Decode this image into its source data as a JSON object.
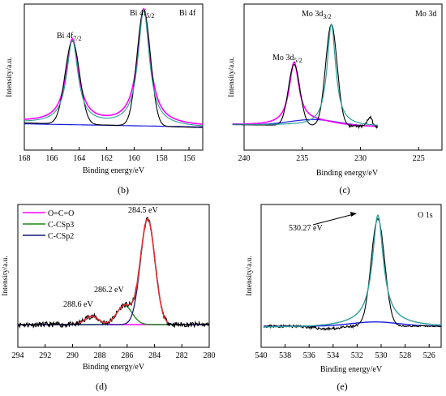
{
  "colors": {
    "black": "#000000",
    "magenta": "#ff00ff",
    "teal": "#2e9f9a",
    "blue": "#1a1ae0",
    "darkblue": "#1a1a80",
    "green": "#1a8a1a",
    "red": "#e03030",
    "darkgray": "#555555"
  },
  "chart_data": [
    {
      "panel": "b",
      "type": "line",
      "label": "(b)",
      "corner_title": "Bi 4f",
      "xlabel": "Binding energy/eV",
      "ylabel": "Intensity/a.u.",
      "xlim": [
        168,
        155
      ],
      "xticks": [
        168,
        166,
        164,
        162,
        160,
        158,
        156
      ],
      "peaks": [
        {
          "name": "Bi 4f",
          "sub": "7/2",
          "center_eV": 164.5,
          "rel_height": 0.72
        },
        {
          "name": "Bi 4f",
          "sub": "5/2",
          "center_eV": 159.3,
          "rel_height": 1.0
        }
      ],
      "series": [
        "raw spectrum (black)",
        "fit (teal)",
        "envelope (magenta)",
        "background (blue)"
      ]
    },
    {
      "panel": "c",
      "type": "line",
      "label": "(c)",
      "corner_title": "Mo 3d",
      "xlabel": "Binding energy/eV",
      "ylabel": "Intensity/a.u.",
      "xlim": [
        240,
        223
      ],
      "xticks": [
        240,
        235,
        230,
        225
      ],
      "peaks": [
        {
          "name": "Mo 3d",
          "sub": "5/2",
          "center_eV": 235.7,
          "rel_height": 0.6
        },
        {
          "name": "Mo 3d",
          "sub": "3/2",
          "center_eV": 232.5,
          "rel_height": 1.0
        }
      ],
      "series": [
        "raw spectrum (black)",
        "fit (teal)",
        "envelope (magenta)",
        "background (blue)"
      ]
    },
    {
      "panel": "d",
      "type": "line",
      "label": "(d)",
      "xlabel": "Binding energy/eV",
      "ylabel": "Intensity/a.u.",
      "xlim": [
        294,
        280
      ],
      "xticks": [
        294,
        292,
        290,
        288,
        286,
        284,
        282,
        280
      ],
      "legend": [
        {
          "name": "O=C=O",
          "color": "#ff00ff"
        },
        {
          "name": "C-CSp3",
          "color": "#1a8a1a"
        },
        {
          "name": "C-CSp2",
          "color": "#1a1a80"
        }
      ],
      "annotations": [
        "284.5 eV",
        "286.2 eV",
        "288.6 eV"
      ],
      "peaks": [
        {
          "name": "C-CSp2",
          "center_eV": 284.5,
          "rel_height": 1.0
        },
        {
          "name": "C-CSp3",
          "center_eV": 286.2,
          "rel_height": 0.18
        },
        {
          "name": "O=C=O",
          "center_eV": 288.6,
          "rel_height": 0.08
        }
      ]
    },
    {
      "panel": "e",
      "type": "line",
      "label": "(e)",
      "corner_title": "O 1s",
      "xlabel": "Binding energy/eV",
      "ylabel": "Intensity/a.u.",
      "xlim": [
        540,
        525
      ],
      "xticks": [
        540,
        538,
        536,
        534,
        532,
        530,
        528,
        526
      ],
      "annotations": [
        "530.27 eV"
      ],
      "peaks": [
        {
          "name": "O 1s",
          "center_eV": 530.27,
          "rel_height": 1.0
        }
      ]
    }
  ]
}
